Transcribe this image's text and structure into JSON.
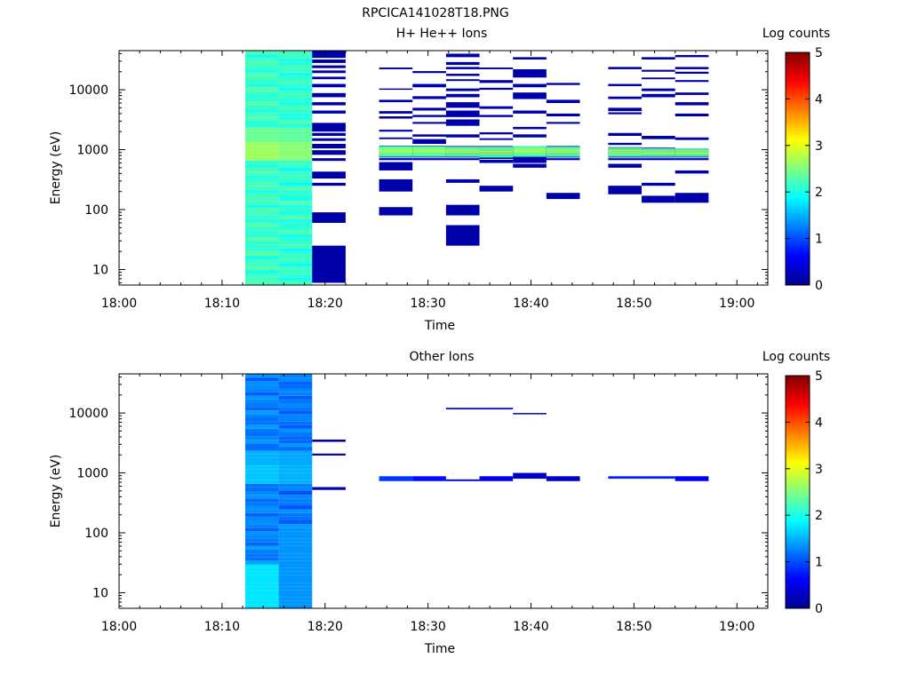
{
  "figure_title": "RPCICA141028T18.PNG",
  "colors": {
    "colormap": [
      "#00008f",
      "#0000ff",
      "#0080ff",
      "#00ffff",
      "#80ff80",
      "#ffff00",
      "#ff8000",
      "#ff0000",
      "#800000"
    ]
  },
  "chart_data": [
    {
      "type": "heatmap",
      "title": "H+ He++ Ions",
      "xlabel": "Time",
      "ylabel": "Energy (eV)",
      "x_scale": "time",
      "y_scale": "log",
      "xlim": [
        "18:00",
        "19:03"
      ],
      "ylim": [
        5.5,
        45000
      ],
      "x_ticks": [
        "18:00",
        "18:10",
        "18:20",
        "18:30",
        "18:40",
        "18:50",
        "19:00"
      ],
      "y_ticks": [
        10,
        100,
        1000,
        10000
      ],
      "y_tick_labels": [
        "10",
        "100",
        "1000",
        "10000"
      ],
      "colorbar": {
        "label": "Log counts",
        "range": [
          0,
          5
        ],
        "ticks": [
          "0",
          "1",
          "2",
          "3",
          "4",
          "5"
        ]
      },
      "grid": false,
      "columns": [
        {
          "t0": "18:12:15",
          "t1": "18:15:30",
          "kind": "dense",
          "base": 2.15,
          "bright": 2.65
        },
        {
          "t0": "18:15:30",
          "t1": "18:18:45",
          "kind": "dense",
          "base": 2.1,
          "bright": 2.55
        },
        {
          "t0": "18:18:45",
          "t1": "18:22:00",
          "kind": "sparse",
          "ranges": [
            [
              6,
              25
            ],
            [
              60,
              90
            ],
            [
              250,
              280
            ],
            [
              330,
              430
            ],
            [
              650,
              720
            ],
            [
              820,
              980
            ],
            [
              1050,
              1250
            ],
            [
              1400,
              1550
            ],
            [
              1700,
              1900
            ],
            [
              2000,
              2800
            ],
            [
              4000,
              4500
            ],
            [
              5500,
              6200
            ],
            [
              7500,
              8800
            ],
            [
              11000,
              12500
            ],
            [
              15000,
              16500
            ],
            [
              19000,
              21000
            ],
            [
              23000,
              25500
            ],
            [
              28000,
              32000
            ],
            [
              34000,
              45000
            ]
          ],
          "value": 0.15
        },
        {
          "t0": "18:25:15",
          "t1": "18:28:30",
          "kind": "sparse",
          "ranges": [
            [
              80,
              110
            ],
            [
              200,
              320
            ],
            [
              450,
              620
            ],
            [
              670,
              720
            ],
            [
              740,
              1170
            ],
            [
              1500,
              1600
            ],
            [
              2000,
              2150
            ],
            [
              3300,
              3600
            ],
            [
              4000,
              4400
            ],
            [
              6200,
              6800
            ],
            [
              10000,
              10500
            ],
            [
              22000,
              23500
            ]
          ],
          "value": 0.15,
          "core": [
            760,
            1150
          ],
          "core_value": 2.4
        },
        {
          "t0": "18:28:30",
          "t1": "18:31:45",
          "kind": "sparse",
          "ranges": [
            [
              670,
              720
            ],
            [
              740,
              1170
            ],
            [
              1250,
              1500
            ],
            [
              1650,
              1800
            ],
            [
              2700,
              2900
            ],
            [
              3500,
              3800
            ],
            [
              4500,
              5000
            ],
            [
              7000,
              7800
            ],
            [
              11000,
              12500
            ],
            [
              19000,
              20500
            ]
          ],
          "value": 0.15,
          "core": [
            760,
            1150
          ],
          "core_value": 2.4
        },
        {
          "t0": "18:31:45",
          "t1": "18:35:00",
          "kind": "sparse",
          "ranges": [
            [
              25,
              55
            ],
            [
              80,
              120
            ],
            [
              280,
              320
            ],
            [
              670,
              720
            ],
            [
              740,
              1150
            ],
            [
              1600,
              1800
            ],
            [
              2500,
              3200
            ],
            [
              3500,
              4500
            ],
            [
              5000,
              6200
            ],
            [
              7500,
              8500
            ],
            [
              9500,
              10500
            ],
            [
              14000,
              15000
            ],
            [
              17000,
              18500
            ],
            [
              22000,
              24000
            ],
            [
              26000,
              29000
            ],
            [
              35000,
              40000
            ]
          ],
          "value": 0.15,
          "core": [
            760,
            1120
          ],
          "core_value": 2.4
        },
        {
          "t0": "18:35:00",
          "t1": "18:38:15",
          "kind": "sparse",
          "ranges": [
            [
              200,
              250
            ],
            [
              600,
              680
            ],
            [
              700,
              1150
            ],
            [
              1450,
              1550
            ],
            [
              1800,
              1950
            ],
            [
              3500,
              3800
            ],
            [
              4800,
              5300
            ],
            [
              10000,
              10800
            ],
            [
              13000,
              14500
            ],
            [
              22000,
              23500
            ]
          ],
          "value": 0.15,
          "core": [
            740,
            1120
          ],
          "core_value": 2.4
        },
        {
          "t0": "18:38:15",
          "t1": "18:41:30",
          "kind": "sparse",
          "ranges": [
            [
              500,
              580
            ],
            [
              600,
              700
            ],
            [
              700,
              1150
            ],
            [
              1600,
              1800
            ],
            [
              2200,
              2400
            ],
            [
              4000,
              4500
            ],
            [
              7000,
              9000
            ],
            [
              11000,
              12500
            ],
            [
              16000,
              22000
            ],
            [
              32000,
              35000
            ]
          ],
          "value": 0.15,
          "core": [
            760,
            1150
          ],
          "core_value": 2.4
        },
        {
          "t0": "18:41:30",
          "t1": "18:44:45",
          "kind": "sparse",
          "ranges": [
            [
              150,
              190
            ],
            [
              670,
              720
            ],
            [
              740,
              1150
            ],
            [
              2700,
              2900
            ],
            [
              3600,
              4000
            ],
            [
              6000,
              6800
            ],
            [
              12000,
              13000
            ]
          ],
          "value": 0.15,
          "core": [
            760,
            1120
          ],
          "core_value": 2.4
        },
        {
          "t0": "18:47:30",
          "t1": "18:50:45",
          "kind": "sparse",
          "ranges": [
            [
              180,
              250
            ],
            [
              500,
              580
            ],
            [
              670,
              720
            ],
            [
              740,
              1100
            ],
            [
              1200,
              1300
            ],
            [
              1700,
              1900
            ],
            [
              3900,
              4200
            ],
            [
              4400,
              5000
            ],
            [
              7000,
              7700
            ],
            [
              11500,
              12500
            ],
            [
              22000,
              24000
            ]
          ],
          "value": 0.15,
          "core": [
            760,
            1080
          ],
          "core_value": 2.4
        },
        {
          "t0": "18:50:45",
          "t1": "18:54:00",
          "kind": "sparse",
          "ranges": [
            [
              130,
              170
            ],
            [
              250,
              280
            ],
            [
              670,
              720
            ],
            [
              740,
              1080
            ],
            [
              1500,
              1700
            ],
            [
              7500,
              8500
            ],
            [
              9500,
              10500
            ],
            [
              15000,
              16000
            ],
            [
              20000,
              21500
            ],
            [
              32000,
              35000
            ]
          ],
          "value": 0.15,
          "core": [
            760,
            1050
          ],
          "core_value": 2.4
        },
        {
          "t0": "18:54:00",
          "t1": "18:57:15",
          "kind": "sparse",
          "ranges": [
            [
              130,
              190
            ],
            [
              400,
              450
            ],
            [
              670,
              720
            ],
            [
              740,
              1050
            ],
            [
              1450,
              1600
            ],
            [
              3600,
              4000
            ],
            [
              5500,
              6200
            ],
            [
              8200,
              9000
            ],
            [
              13500,
              14500
            ],
            [
              18500,
              20000
            ],
            [
              22000,
              24000
            ],
            [
              35000,
              38000
            ]
          ],
          "value": 0.15,
          "core": [
            760,
            1050
          ],
          "core_value": 2.4
        }
      ]
    },
    {
      "type": "heatmap",
      "title": "Other Ions",
      "xlabel": "Time",
      "ylabel": "Energy (eV)",
      "x_scale": "time",
      "y_scale": "log",
      "xlim": [
        "18:00",
        "19:03"
      ],
      "ylim": [
        5.5,
        45000
      ],
      "x_ticks": [
        "18:00",
        "18:10",
        "18:20",
        "18:30",
        "18:40",
        "18:50",
        "19:00"
      ],
      "y_ticks": [
        10,
        100,
        1000,
        10000
      ],
      "y_tick_labels": [
        "10",
        "100",
        "1000",
        "10000"
      ],
      "colorbar": {
        "label": "Log counts",
        "range": [
          0,
          5
        ],
        "ticks": [
          "0",
          "1",
          "2",
          "3",
          "4",
          "5"
        ]
      },
      "grid": false,
      "columns": [
        {
          "t0": "18:12:15",
          "t1": "18:15:30",
          "kind": "dense",
          "base": 1.25,
          "bright": 1.6,
          "low_value": 1.75,
          "low_top": 28
        },
        {
          "t0": "18:15:30",
          "t1": "18:18:45",
          "kind": "dense",
          "base": 1.2,
          "bright": 1.5,
          "low_value": 1.35,
          "low_top": 120
        },
        {
          "t0": "18:18:45",
          "t1": "18:22:00",
          "kind": "sparse",
          "ranges": [
            [
              520,
              580
            ],
            [
              1950,
              2100
            ],
            [
              3300,
              3600
            ]
          ],
          "value": 0.2
        },
        {
          "t0": "18:25:15",
          "t1": "18:28:30",
          "kind": "sparse",
          "ranges": [
            [
              730,
              880
            ]
          ],
          "value": 0.9
        },
        {
          "t0": "18:28:30",
          "t1": "18:31:45",
          "kind": "sparse",
          "ranges": [
            [
              730,
              880
            ]
          ],
          "value": 0.7
        },
        {
          "t0": "18:31:45",
          "t1": "18:35:00",
          "kind": "sparse",
          "ranges": [
            [
              730,
              780
            ],
            [
              11500,
              12200
            ]
          ],
          "value": 0.4
        },
        {
          "t0": "18:35:00",
          "t1": "18:38:15",
          "kind": "sparse",
          "ranges": [
            [
              730,
              880
            ],
            [
              11500,
              12200
            ]
          ],
          "value": 0.5
        },
        {
          "t0": "18:38:15",
          "t1": "18:41:30",
          "kind": "sparse",
          "ranges": [
            [
              800,
              1000
            ],
            [
              9500,
              10000
            ]
          ],
          "value": 0.3
        },
        {
          "t0": "18:41:30",
          "t1": "18:44:45",
          "kind": "sparse",
          "ranges": [
            [
              730,
              880
            ]
          ],
          "value": 0.3
        },
        {
          "t0": "18:47:30",
          "t1": "18:50:45",
          "kind": "sparse",
          "ranges": [
            [
              800,
              880
            ]
          ],
          "value": 0.8
        },
        {
          "t0": "18:50:45",
          "t1": "18:54:00",
          "kind": "sparse",
          "ranges": [
            [
              800,
              880
            ]
          ],
          "value": 0.8
        },
        {
          "t0": "18:54:00",
          "t1": "18:57:15",
          "kind": "sparse",
          "ranges": [
            [
              730,
              880
            ]
          ],
          "value": 0.6
        }
      ]
    }
  ]
}
